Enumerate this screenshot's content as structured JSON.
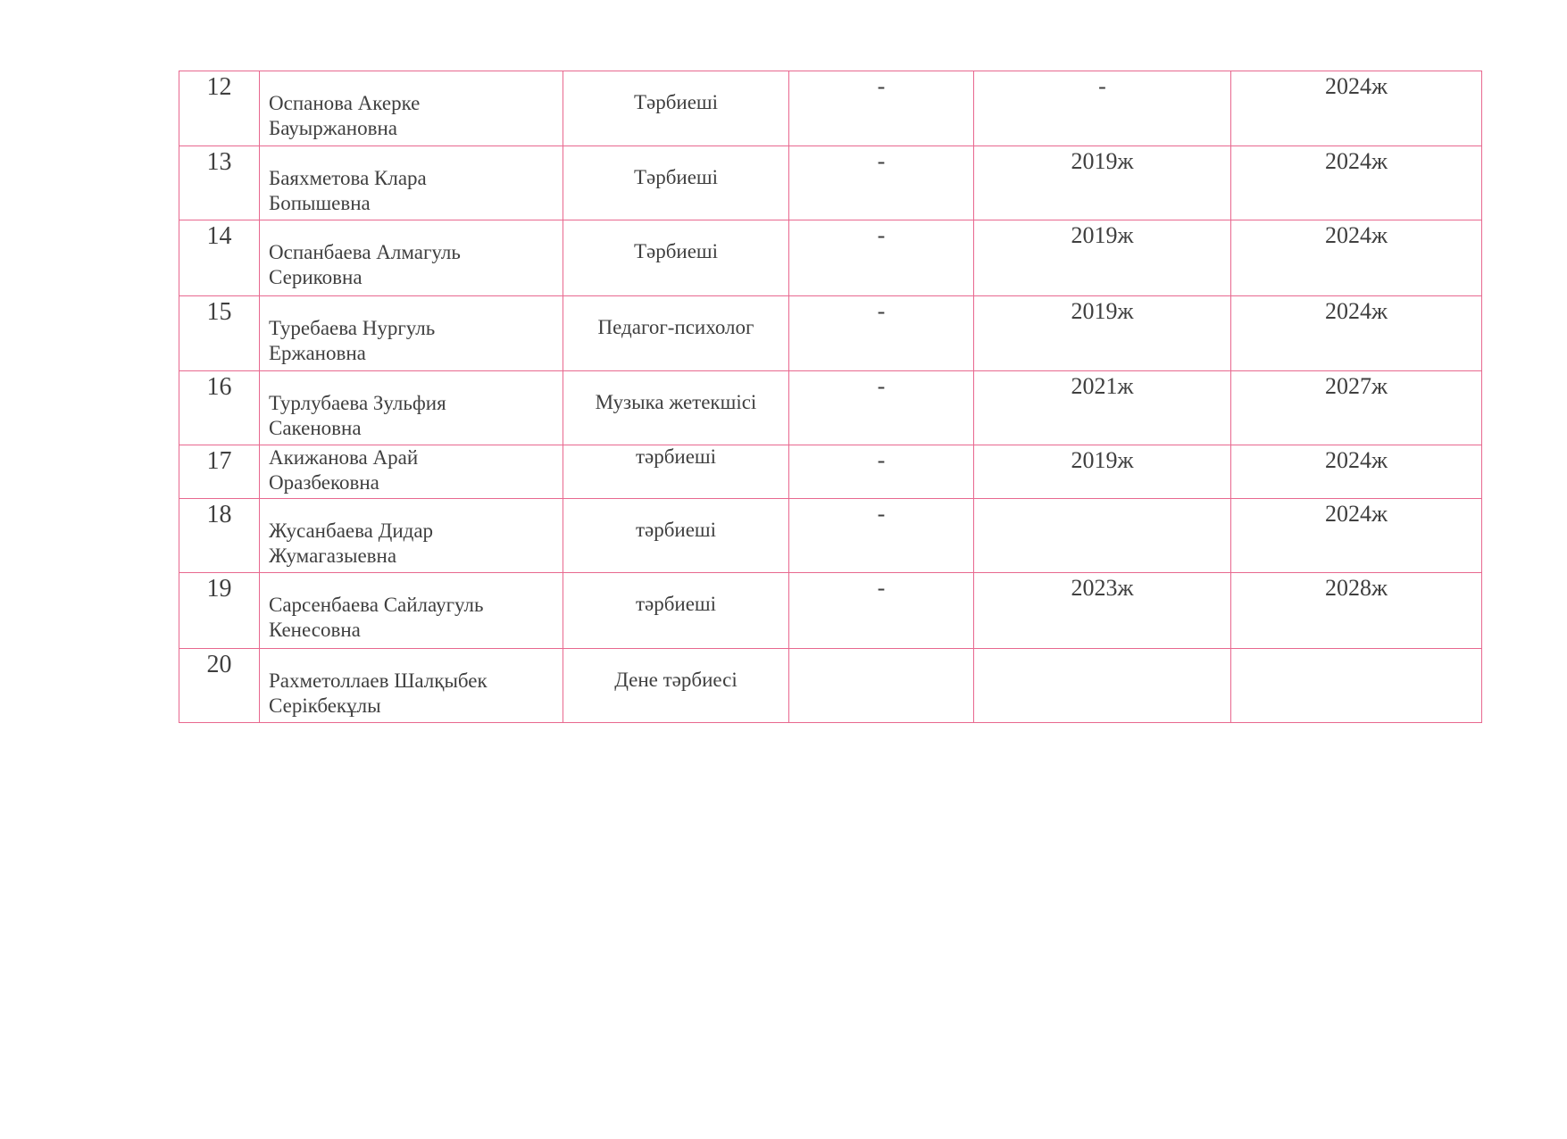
{
  "rows": [
    {
      "num": "12",
      "name": [
        "Оспанова Акерке",
        "Бауыржановна"
      ],
      "position": "Тәрбиеші",
      "col4": "-",
      "col5": "-",
      "col6": "2024ж"
    },
    {
      "num": "13",
      "name": [
        "Баяхметова Клара",
        "Бопышевна"
      ],
      "position": "Тәрбиеші",
      "col4": "-",
      "col5": "2019ж",
      "col6": "2024ж"
    },
    {
      "num": "14",
      "name": [
        "Оспанбаева Алмагуль",
        "Сериковна"
      ],
      "position": "Тәрбиеші",
      "col4": "-",
      "col5": "2019ж",
      "col6": "2024ж"
    },
    {
      "num": "15",
      "name": [
        "Туребаева Нургуль",
        "Ержановна"
      ],
      "position": "Педагог-психолог",
      "col4": "-",
      "col5": "2019ж",
      "col6": "2024ж"
    },
    {
      "num": "16",
      "name": [
        "Турлубаева Зульфия",
        "Сакеновна"
      ],
      "position": "Музыка жетекшісі",
      "col4": "-",
      "col5": "2021ж",
      "col6": "2027ж"
    },
    {
      "num": "17",
      "name": [
        "Акижанова Арай",
        "Оразбековна"
      ],
      "position": "тәрбиеші",
      "col4": "-",
      "col5": "2019ж",
      "col6": "2024ж"
    },
    {
      "num": "18",
      "name": [
        "Жусанбаева Дидар",
        "Жумагазыевна"
      ],
      "position": "тәрбиеші",
      "col4": "-",
      "col5": "",
      "col6": "2024ж"
    },
    {
      "num": "19",
      "name": [
        "Сарсенбаева Сайлаугуль",
        "Кенесовна"
      ],
      "position": "тәрбиеші",
      "col4": "-",
      "col5": "2023ж",
      "col6": "2028ж"
    },
    {
      "num": "20",
      "name": [
        "Рахметоллаев Шалқыбек",
        "Серікбекұлы"
      ],
      "position": "Дене тәрбиесі",
      "col4": "",
      "col5": "",
      "col6": ""
    }
  ]
}
